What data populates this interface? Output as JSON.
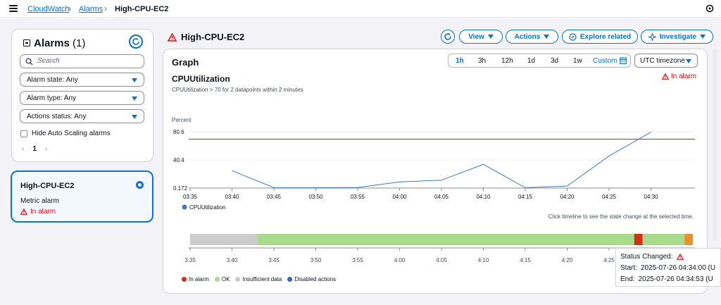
{
  "breadcrumb": {
    "items": [
      "CloudWatch",
      "Alarms"
    ],
    "current": "High-CPU-EC2"
  },
  "sidebar": {
    "title": "Alarms",
    "count": "(1)",
    "search_placeholder": "Search",
    "filters": [
      "Alarm state: Any",
      "Alarm type: Any",
      "Actions status: Any"
    ],
    "checkbox_label": "Hide Auto Scaling alarms",
    "page": "1"
  },
  "alarm_card": {
    "name": "High-CPU-EC2",
    "type": "Metric alarm",
    "state": "In alarm"
  },
  "header": {
    "title": "High-CPU-EC2",
    "buttons": {
      "view": "View",
      "actions": "Actions",
      "explore": "Explore related",
      "investigate": "Investigate"
    }
  },
  "graph": {
    "title": "Graph",
    "time_ranges": [
      "1h",
      "3h",
      "12h",
      "1d",
      "3d",
      "1w"
    ],
    "active_range": "1h",
    "custom_label": "Custom",
    "timezone": "UTC timezone",
    "metric": "CPUUtilization",
    "description": "CPUUtilization > 70 for 2 datapoints within 2 minutes",
    "state": "In alarm",
    "hint": "Click timeline to see the state change at the selected time."
  },
  "chart_data": {
    "type": "line",
    "ylabel": "Percent",
    "y_ticks": [
      "80.6",
      "40.4",
      "0.172"
    ],
    "ylim": [
      0.172,
      80.6
    ],
    "x_tick_labels": [
      "03:35",
      "03:40",
      "03:45",
      "03:50",
      "03:55",
      "04:00",
      "04:05",
      "04:10",
      "04:15",
      "04:20",
      "04:25",
      "04:30"
    ],
    "series": [
      {
        "name": "CPUUtilization",
        "color": "#3d7bbd",
        "x": [
          "03:40",
          "03:45",
          "03:50",
          "03:55",
          "04:00",
          "04:05",
          "04:10",
          "04:15",
          "04:20",
          "04:25",
          "04:30"
        ],
        "values": [
          25,
          0.8,
          0.8,
          1,
          9,
          11.5,
          34,
          0.8,
          3,
          46,
          80
        ]
      }
    ],
    "threshold": {
      "value": 70,
      "color": "#d13212"
    }
  },
  "timeline": {
    "ticks": [
      "3:35",
      "3:40",
      "3:45",
      "3:50",
      "3:55",
      "4:00",
      "4:05",
      "4:10",
      "4:15",
      "4:20",
      "4:25"
    ],
    "segments": [
      {
        "state": "Insufficient data",
        "from": "03:35",
        "to": "03:43",
        "color": "#cccccc"
      },
      {
        "state": "OK",
        "from": "03:43",
        "to": "04:28",
        "color": "#a8dc8c"
      },
      {
        "state": "In alarm",
        "from": "04:28",
        "to": "04:29",
        "color": "#d13212"
      },
      {
        "state": "OK",
        "from": "04:29",
        "to": "04:34",
        "color": "#a8dc8c"
      },
      {
        "state": "Disabled actions",
        "from": "04:34",
        "to": "04:35",
        "color": "#e8912d"
      }
    ],
    "legend": [
      {
        "label": "In alarm",
        "color": "#d13212"
      },
      {
        "label": "OK",
        "color": "#a8dc8c"
      },
      {
        "label": "Insufficient data",
        "color": "#cccccc"
      },
      {
        "label": "Disabled actions",
        "color": "#2e6bb3"
      }
    ]
  },
  "tooltip": {
    "title": "Status Changed:",
    "start_label": "Start:",
    "start_value": "2025-07-26 04:34:00 (U",
    "end_label": "End:",
    "end_value": "2025-07-26 04:34:53 (U"
  }
}
